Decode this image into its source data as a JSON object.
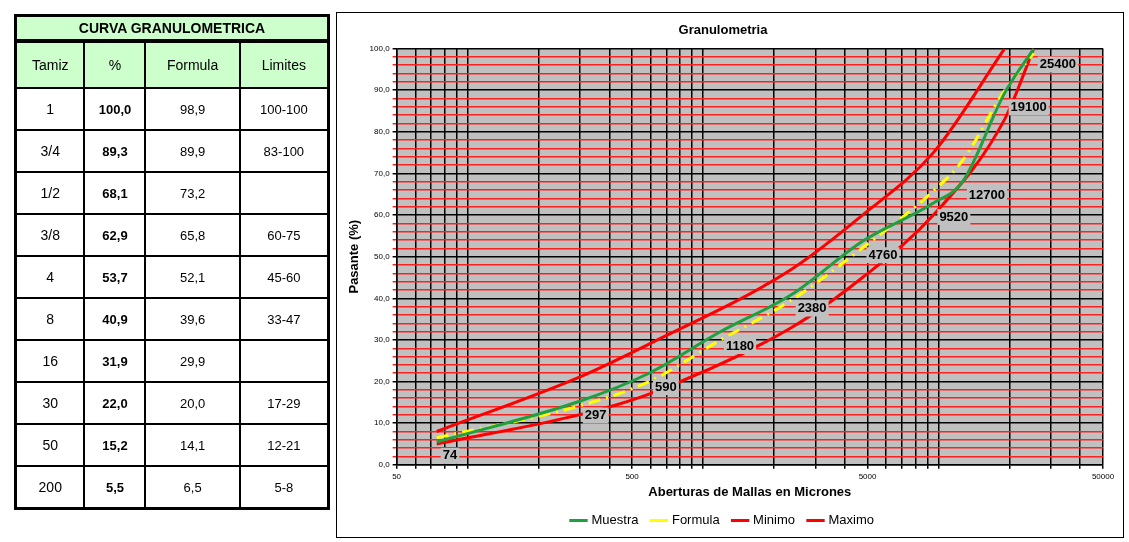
{
  "chart_data": [
    {
      "type": "other",
      "title": "CURVA GRANULOMETRICA",
      "ylabel": "Tamiz",
      "categories": [
        "%",
        "Formula",
        "Limites"
      ],
      "y_categories": [
        "1",
        "3/4",
        "1/2",
        "3/8",
        "4",
        "8",
        "16",
        "30",
        "50",
        "200"
      ],
      "cell_labels": [
        [
          "100,0",
          "98,9",
          "100-100"
        ],
        [
          "89,3",
          "89,9",
          "83-100"
        ],
        [
          "68,1",
          "73,2",
          null
        ],
        [
          "62,9",
          "65,8",
          "60-75"
        ],
        [
          "53,7",
          "52,1",
          "45-60"
        ],
        [
          "40,9",
          "39,6",
          "33-47"
        ],
        [
          "31,9",
          "29,9",
          null
        ],
        [
          "22,0",
          "20,0",
          "17-29"
        ],
        [
          "15,2",
          "14,1",
          "12-21"
        ],
        [
          "5,5",
          "6,5",
          "5-8"
        ]
      ]
    },
    {
      "type": "line",
      "title": "Granulometria",
      "xlabel": "Aberturas de Mallas en Micrones",
      "ylabel": "Pasante (%)",
      "log": "x",
      "grid": true,
      "legend": "bottom",
      "marker": "none",
      "xlim": [
        50,
        50000
      ],
      "xticks": [
        {
          "value": 50,
          "label": "50"
        },
        {
          "value": 60,
          "label": null
        },
        {
          "value": 70,
          "label": null
        },
        {
          "value": 80,
          "label": null
        },
        {
          "value": 90,
          "label": null
        },
        {
          "value": 100,
          "label": null
        },
        {
          "value": 200,
          "label": null
        },
        {
          "value": 300,
          "label": null
        },
        {
          "value": 400,
          "label": null
        },
        {
          "value": 500,
          "label": "500"
        },
        {
          "value": 600,
          "label": null
        },
        {
          "value": 700,
          "label": null
        },
        {
          "value": 800,
          "label": null
        },
        {
          "value": 900,
          "label": null
        },
        {
          "value": 1000,
          "label": null
        },
        {
          "value": 2000,
          "label": null
        },
        {
          "value": 3000,
          "label": null
        },
        {
          "value": 4000,
          "label": null
        },
        {
          "value": 5000,
          "label": "5000"
        },
        {
          "value": 6000,
          "label": null
        },
        {
          "value": 7000,
          "label": null
        },
        {
          "value": 8000,
          "label": null
        },
        {
          "value": 9000,
          "label": null
        },
        {
          "value": 10000,
          "label": null
        },
        {
          "value": 20000,
          "label": null
        },
        {
          "value": 30000,
          "label": null
        },
        {
          "value": 40000,
          "label": null
        },
        {
          "value": 50000,
          "label": "50000"
        }
      ],
      "ylim": [
        0,
        100
      ],
      "yticks": [
        {
          "value": 0,
          "label": "0,0"
        },
        {
          "value": 2,
          "label": null
        },
        {
          "value": 4,
          "label": null
        },
        {
          "value": 6,
          "label": null
        },
        {
          "value": 8,
          "label": null
        },
        {
          "value": 10,
          "label": "10,0"
        },
        {
          "value": 12,
          "label": null
        },
        {
          "value": 14,
          "label": null
        },
        {
          "value": 16,
          "label": null
        },
        {
          "value": 18,
          "label": null
        },
        {
          "value": 20,
          "label": "20,0"
        },
        {
          "value": 22,
          "label": null
        },
        {
          "value": 24,
          "label": null
        },
        {
          "value": 26,
          "label": null
        },
        {
          "value": 28,
          "label": null
        },
        {
          "value": 30,
          "label": "30,0"
        },
        {
          "value": 32,
          "label": null
        },
        {
          "value": 34,
          "label": null
        },
        {
          "value": 36,
          "label": null
        },
        {
          "value": 38,
          "label": null
        },
        {
          "value": 40,
          "label": "40,0"
        },
        {
          "value": 42,
          "label": null
        },
        {
          "value": 44,
          "label": null
        },
        {
          "value": 46,
          "label": null
        },
        {
          "value": 48,
          "label": null
        },
        {
          "value": 50,
          "label": "50,0"
        },
        {
          "value": 52,
          "label": null
        },
        {
          "value": 54,
          "label": null
        },
        {
          "value": 56,
          "label": null
        },
        {
          "value": 58,
          "label": null
        },
        {
          "value": 60,
          "label": "60,0"
        },
        {
          "value": 62,
          "label": null
        },
        {
          "value": 64,
          "label": null
        },
        {
          "value": 66,
          "label": null
        },
        {
          "value": 68,
          "label": null
        },
        {
          "value": 70,
          "label": "70,0"
        },
        {
          "value": 72,
          "label": null
        },
        {
          "value": 74,
          "label": null
        },
        {
          "value": 76,
          "label": null
        },
        {
          "value": 78,
          "label": null
        },
        {
          "value": 80,
          "label": "80,0"
        },
        {
          "value": 82,
          "label": null
        },
        {
          "value": 84,
          "label": null
        },
        {
          "value": 86,
          "label": null
        },
        {
          "value": 88,
          "label": null
        },
        {
          "value": 90,
          "label": "90,0"
        },
        {
          "value": 92,
          "label": null
        },
        {
          "value": 94,
          "label": null
        },
        {
          "value": 96,
          "label": null
        },
        {
          "value": 98,
          "label": null
        },
        {
          "value": 100,
          "label": "100,0"
        }
      ],
      "series": [
        {
          "name": "Muestra",
          "color": "#1fa040",
          "x": [
            74,
            297,
            590,
            1180,
            2380,
            4760,
            9520,
            12700,
            19100,
            25400
          ],
          "values": [
            5.5,
            15.2,
            22.0,
            31.9,
            40.9,
            53.7,
            62.9,
            68.1,
            89.3,
            100.0
          ]
        },
        {
          "name": "Formula",
          "color": "#ffff00",
          "line_style": "dashed",
          "x": [
            74,
            297,
            590,
            1180,
            2380,
            4760,
            9520,
            12700,
            19100,
            25400
          ],
          "values": [
            6.5,
            14.1,
            20.0,
            29.9,
            39.6,
            52.1,
            65.8,
            73.2,
            89.9,
            98.9
          ]
        },
        {
          "name": "Minimo",
          "color": "#ff0000",
          "x": [
            74,
            297,
            590,
            2380,
            4760,
            9520,
            19100,
            25400
          ],
          "values": [
            5,
            12,
            17,
            33,
            45,
            60,
            83,
            100
          ]
        },
        {
          "name": "Maximo",
          "color": "#ff0000",
          "x": [
            74,
            297,
            590,
            2380,
            4760,
            9520,
            19100
          ],
          "values": [
            8,
            21,
            29,
            47,
            60,
            75,
            100
          ]
        }
      ],
      "annotations": [
        {
          "text": "74",
          "x": 74,
          "y": 5.5
        },
        {
          "text": "297",
          "x": 297,
          "y": 15.2
        },
        {
          "text": "590",
          "x": 590,
          "y": 22.0
        },
        {
          "text": "1180",
          "x": 1180,
          "y": 31.9
        },
        {
          "text": "2380",
          "x": 2380,
          "y": 40.9
        },
        {
          "text": "4760",
          "x": 4760,
          "y": 53.7
        },
        {
          "text": "9520",
          "x": 9520,
          "y": 62.9
        },
        {
          "text": "12700",
          "x": 12700,
          "y": 68.1
        },
        {
          "text": "19100",
          "x": 19100,
          "y": 89.3
        },
        {
          "text": "25400",
          "x": 25400,
          "y": 100.0
        }
      ]
    }
  ]
}
